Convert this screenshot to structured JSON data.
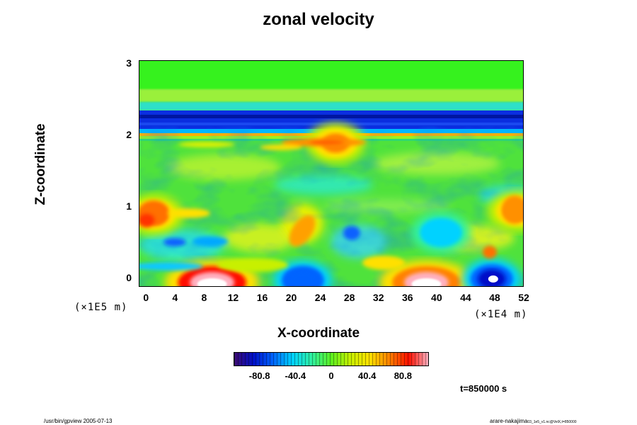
{
  "chart_data": {
    "type": "heatmap",
    "title": "zonal velocity",
    "xlabel": "X-coordinate",
    "ylabel": "Z-coordinate",
    "x_unit": "(×1E4 m)",
    "y_unit": "(×1E5 m)",
    "xlim": [
      -1,
      52
    ],
    "ylim": [
      -0.12,
      3.05
    ],
    "x_ticks": [
      "0",
      "4",
      "8",
      "12",
      "16",
      "20",
      "24",
      "28",
      "32",
      "36",
      "40",
      "44",
      "48",
      "52"
    ],
    "y_ticks": [
      "0",
      "1",
      "2",
      "3"
    ],
    "colorbar": {
      "ticks": [
        "-80.8",
        "-40.4",
        "0",
        "40.4",
        "80.8"
      ],
      "range": [
        -110,
        110
      ],
      "colors": [
        "#3d0a70",
        "#0010c8",
        "#0064ff",
        "#00d2ff",
        "#30f0a0",
        "#5cf020",
        "#c8f000",
        "#ffe000",
        "#ff8000",
        "#ff1000",
        "#ffb0c0"
      ]
    },
    "features": [
      {
        "x": 9,
        "z": -0.05,
        "value": 120,
        "label": "strong positive jet near bottom"
      },
      {
        "x": 38.5,
        "z": -0.05,
        "value": 100,
        "label": "positive jet near bottom"
      },
      {
        "x": 21.5,
        "z": -0.02,
        "value": -75,
        "label": "negative core near bottom"
      },
      {
        "x": 47.5,
        "z": 0.0,
        "value": -80,
        "label": "negative core with positive center"
      },
      {
        "x": 40.5,
        "z": 0.65,
        "value": -50,
        "label": "negative vortex"
      },
      {
        "x": 1,
        "z": 0.9,
        "value": 60,
        "label": "positive patch left edge"
      },
      {
        "x": 51,
        "z": 0.95,
        "value": 60,
        "label": "positive patch right edge"
      },
      {
        "x": 26,
        "z": 1.9,
        "value": 55,
        "label": "positive streak below 2"
      },
      {
        "x": 26,
        "z": 2.3,
        "value": -95,
        "label": "negative band near 2.3"
      },
      {
        "x": 26,
        "z": 2.08,
        "value": 45,
        "label": "positive band near 2.1"
      }
    ]
  },
  "time_label": "t=850000 s",
  "footer": {
    "left": "/usr/bin/gpview 2005-07-13",
    "right": "arare-nakajima",
    "right_sub": "03_1e5_v1.nc@VelX,t=850000"
  }
}
